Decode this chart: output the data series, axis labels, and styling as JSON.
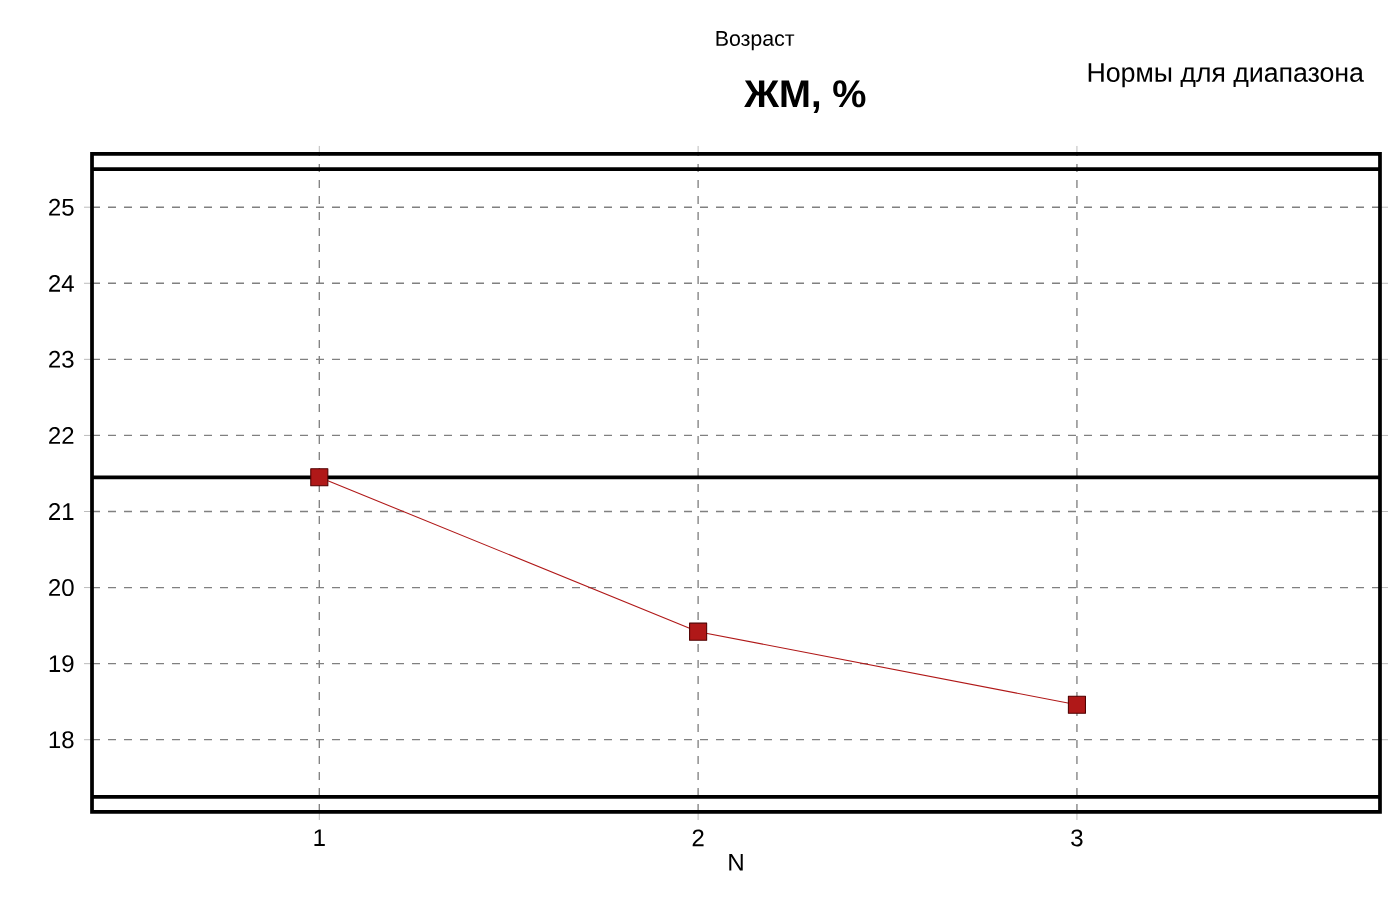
{
  "chart_data": {
    "type": "line",
    "title": "ЖМ, %",
    "xlabel": "N",
    "annotations": [
      "Возраст",
      "Нормы для диапазона"
    ],
    "categories": [
      "1",
      "2",
      "3"
    ],
    "series": [
      {
        "color": "#b01818",
        "values": [
          21.45,
          19.42,
          18.46
        ]
      }
    ],
    "ylim": [
      17.05,
      25.7
    ],
    "yticks": [
      18,
      19,
      20,
      21,
      22,
      23,
      24,
      25
    ],
    "ref_lines": [
      {
        "axis": "y",
        "value": 25.5,
        "color": "#000000"
      },
      {
        "axis": "y",
        "value": 21.45,
        "color": "#000000"
      },
      {
        "axis": "y",
        "value": 17.25,
        "color": "#000000"
      }
    ],
    "grid": true,
    "marker": "square",
    "line_style": "solid"
  }
}
